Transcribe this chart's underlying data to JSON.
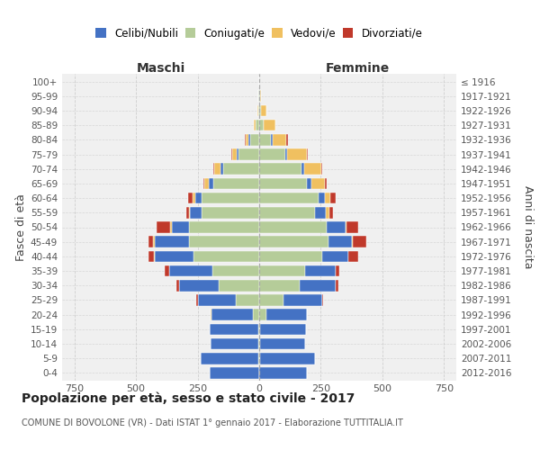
{
  "age_groups": [
    "0-4",
    "5-9",
    "10-14",
    "15-19",
    "20-24",
    "25-29",
    "30-34",
    "35-39",
    "40-44",
    "45-49",
    "50-54",
    "55-59",
    "60-64",
    "65-69",
    "70-74",
    "75-79",
    "80-84",
    "85-89",
    "90-94",
    "95-99",
    "100+"
  ],
  "birth_years": [
    "2012-2016",
    "2007-2011",
    "2002-2006",
    "1997-2001",
    "1992-1996",
    "1987-1991",
    "1982-1986",
    "1977-1981",
    "1972-1976",
    "1967-1971",
    "1962-1966",
    "1957-1961",
    "1952-1956",
    "1947-1951",
    "1942-1946",
    "1937-1941",
    "1932-1936",
    "1927-1931",
    "1922-1926",
    "1917-1921",
    "≤ 1916"
  ],
  "male": {
    "celibi": [
      200,
      235,
      195,
      195,
      170,
      155,
      160,
      175,
      160,
      140,
      70,
      45,
      25,
      18,
      12,
      8,
      5,
      2,
      0,
      0,
      0
    ],
    "coniugati": [
      0,
      3,
      3,
      5,
      25,
      95,
      165,
      190,
      265,
      285,
      285,
      235,
      235,
      185,
      145,
      85,
      38,
      14,
      5,
      2,
      0
    ],
    "vedovi": [
      0,
      0,
      0,
      0,
      2,
      0,
      0,
      0,
      3,
      5,
      5,
      5,
      10,
      20,
      25,
      15,
      10,
      5,
      3,
      2,
      0
    ],
    "divorziati": [
      0,
      0,
      0,
      0,
      0,
      5,
      10,
      20,
      20,
      20,
      55,
      10,
      20,
      5,
      5,
      5,
      5,
      0,
      0,
      0,
      0
    ]
  },
  "female": {
    "nubili": [
      195,
      225,
      185,
      185,
      165,
      155,
      145,
      125,
      105,
      95,
      75,
      45,
      25,
      18,
      12,
      8,
      5,
      2,
      0,
      0,
      0
    ],
    "coniugate": [
      0,
      3,
      3,
      5,
      28,
      100,
      165,
      185,
      255,
      280,
      275,
      225,
      240,
      195,
      170,
      105,
      48,
      18,
      8,
      2,
      0
    ],
    "vedove": [
      0,
      0,
      0,
      0,
      0,
      0,
      0,
      0,
      3,
      5,
      5,
      15,
      25,
      55,
      70,
      80,
      58,
      45,
      20,
      5,
      0
    ],
    "divorziate": [
      0,
      0,
      0,
      0,
      0,
      5,
      10,
      15,
      38,
      55,
      45,
      15,
      20,
      5,
      5,
      5,
      5,
      0,
      0,
      0,
      0
    ]
  },
  "colors": {
    "celibi": "#4472C4",
    "coniugati": "#b5cc99",
    "vedovi": "#f0c060",
    "divorziati": "#c0392b"
  },
  "xlim": 800,
  "title": "Popolazione per età, sesso e stato civile - 2017",
  "subtitle": "COMUNE DI BOVOLONE (VR) - Dati ISTAT 1° gennaio 2017 - Elaborazione TUTTITALIA.IT",
  "ylabel_left": "Fasce di età",
  "ylabel_right": "Anni di nascita",
  "xlabel_left": "Maschi",
  "xlabel_right": "Femmine",
  "bg_color": "#f0f0f0",
  "grid_color": "#cccccc"
}
